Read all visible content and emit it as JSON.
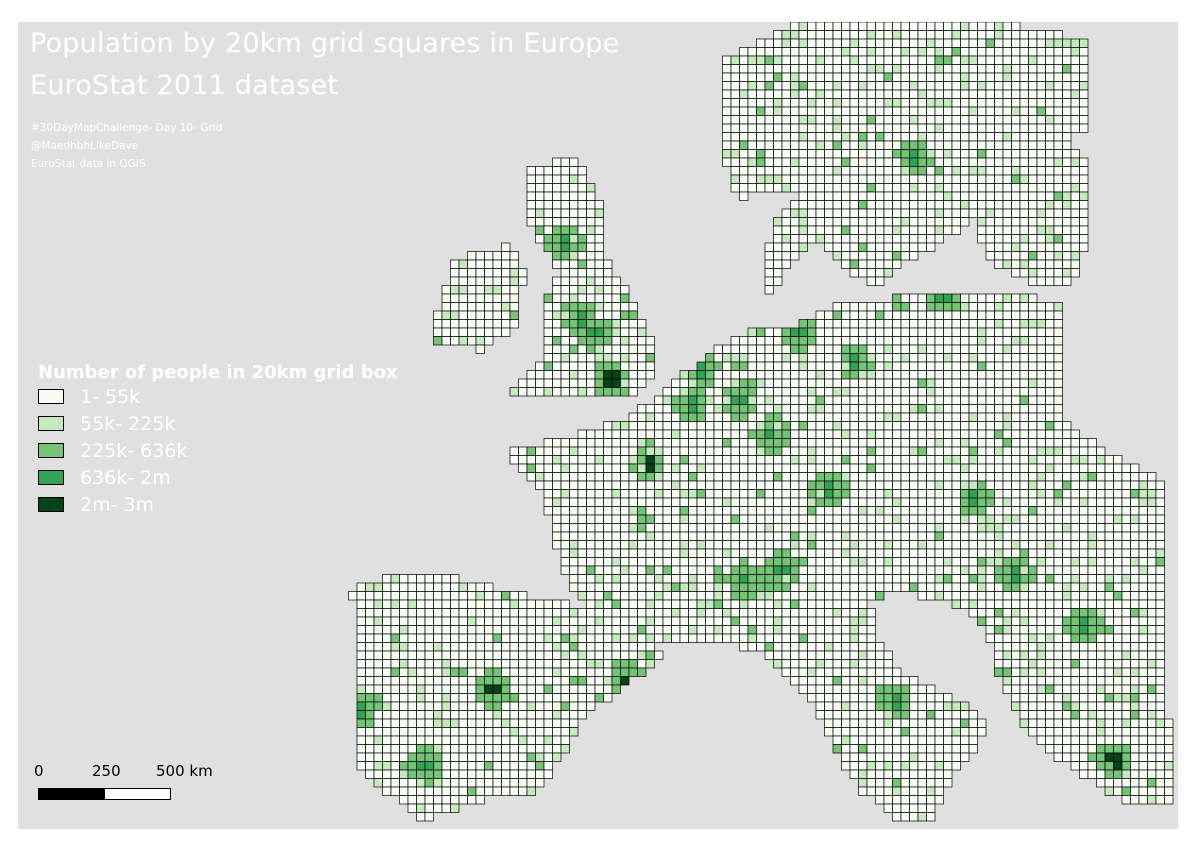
{
  "title": {
    "line1": "Population by 20km grid squares in Europe",
    "line2": "EuroStat 2011 dataset"
  },
  "credits": {
    "line1": "#30DayMapChallenge- Day 10- Grid",
    "line2": "@MaedhbhLikeDave",
    "line3": "EuroStat data in QGIS"
  },
  "legend": {
    "title": "Number of people in 20km grid box",
    "items": [
      {
        "label": "1- 55k",
        "color": "#f7fcf5"
      },
      {
        "label": "55k- 225k",
        "color": "#c7e9c0"
      },
      {
        "label": "225k- 636k",
        "color": "#74c476"
      },
      {
        "label": "636k- 2m",
        "color": "#31a354"
      },
      {
        "label": "2m- 3m",
        "color": "#00441b"
      }
    ]
  },
  "scale_bar": {
    "labels": [
      "0",
      "250",
      "500 km"
    ]
  },
  "colors": {
    "background": "#e0e0e0",
    "frame": "#ffffff",
    "cell_stroke": "#000000",
    "text": "#ffffff"
  }
}
